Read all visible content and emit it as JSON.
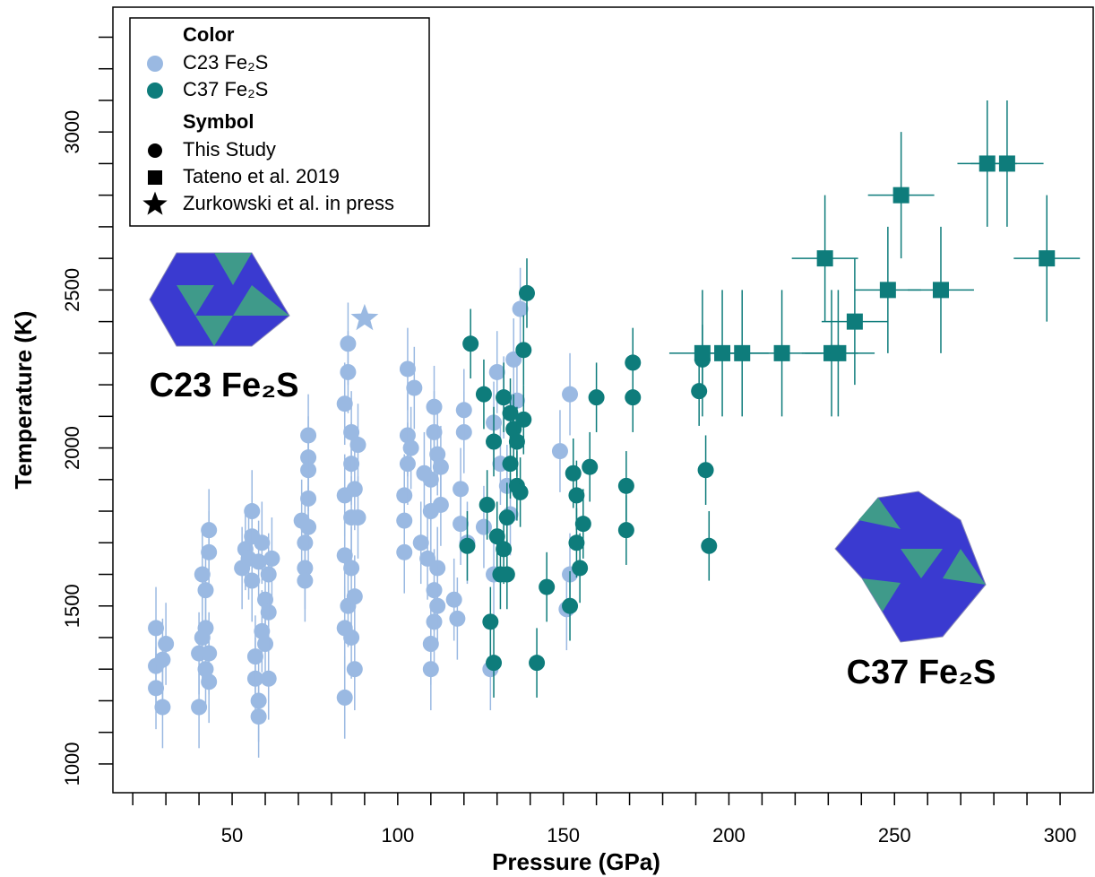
{
  "chart_data": {
    "type": "scatter",
    "xlabel": "Pressure (GPa)",
    "ylabel": "Temperature (K)",
    "xlim": [
      14,
      310
    ],
    "ylim": [
      909,
      3395
    ],
    "xticks": [
      50,
      100,
      150,
      200,
      250,
      300
    ],
    "yticks": [
      1000,
      1500,
      2000,
      2500,
      3000
    ],
    "x_minor_ticks": [
      20,
      30,
      40,
      60,
      70,
      80,
      90,
      110,
      120,
      130,
      140,
      160,
      170,
      180,
      190,
      210,
      220,
      230,
      240,
      260,
      270,
      280,
      290
    ],
    "y_minor_ticks": [
      1100,
      1200,
      1300,
      1400,
      1600,
      1700,
      1800,
      1900,
      2100,
      2200,
      2300,
      2400,
      2600,
      2700,
      2800,
      2900,
      3100,
      3200,
      3300
    ],
    "series": [
      {
        "color": "#9ab9e2",
        "marker": "circle",
        "yerr": 130,
        "x": [
          27,
          27,
          27,
          29,
          29,
          30,
          40,
          40,
          41,
          41,
          42,
          42,
          42,
          43,
          43,
          43,
          43,
          53,
          54,
          55,
          56,
          56,
          56,
          57,
          57,
          58,
          58,
          58,
          59,
          59,
          60,
          60,
          61,
          61,
          61,
          62,
          71,
          72,
          72,
          72,
          73,
          73,
          73,
          73,
          73,
          84,
          84,
          84,
          84,
          84,
          85,
          85,
          85,
          86,
          86,
          86,
          86,
          86,
          87,
          87,
          87,
          88,
          88,
          102,
          102,
          102,
          103,
          103,
          103,
          104,
          105,
          107,
          108,
          109,
          110,
          110,
          110,
          110,
          111,
          111,
          111,
          111,
          112,
          112,
          112,
          113,
          113,
          117,
          118,
          119,
          119,
          120,
          120,
          121,
          126,
          128,
          129,
          129,
          130,
          131,
          132,
          133,
          134,
          135,
          136,
          137,
          149,
          151,
          152,
          152
        ],
        "values": [
          1430,
          1310,
          1240,
          1180,
          1330,
          1380,
          1180,
          1350,
          1400,
          1600,
          1550,
          1430,
          1300,
          1670,
          1740,
          1350,
          1260,
          1620,
          1680,
          1650,
          1720,
          1580,
          1800,
          1270,
          1340,
          1200,
          1150,
          1640,
          1700,
          1420,
          1520,
          1380,
          1480,
          1270,
          1600,
          1650,
          1770,
          1620,
          1700,
          1580,
          1840,
          1930,
          1970,
          2040,
          1750,
          1210,
          1430,
          1660,
          1850,
          2140,
          2240,
          2330,
          1500,
          1950,
          2050,
          1780,
          1620,
          1400,
          1300,
          1870,
          1530,
          2010,
          1780,
          1670,
          1770,
          1850,
          2040,
          1950,
          2250,
          2000,
          2190,
          1700,
          1920,
          1650,
          1900,
          1800,
          1380,
          1300,
          1450,
          2130,
          2050,
          1550,
          1980,
          1620,
          1500,
          1940,
          1820,
          1520,
          1460,
          1870,
          1760,
          2050,
          2120,
          1700,
          1750,
          1300,
          1600,
          2080,
          2240,
          1950,
          2160,
          1880,
          1790,
          2280,
          2150,
          2440,
          1990,
          1490,
          1600,
          2170
        ]
      },
      {
        "color": "#0e7c7b",
        "marker": "circle",
        "yerr": 110,
        "x": [
          121,
          122,
          126,
          127,
          128,
          129,
          129,
          130,
          131,
          132,
          132,
          133,
          133,
          134,
          134,
          135,
          136,
          136,
          137,
          138,
          138,
          139,
          142,
          145,
          152,
          153,
          154,
          154,
          155,
          156,
          158,
          160,
          169,
          169,
          171,
          171,
          191,
          192,
          193,
          194
        ],
        "values": [
          1690,
          2330,
          2170,
          1820,
          1450,
          1320,
          2020,
          1720,
          1600,
          2160,
          1680,
          1780,
          1600,
          2110,
          1950,
          2060,
          2020,
          1880,
          1860,
          2090,
          2310,
          2490,
          1320,
          1560,
          1500,
          1920,
          1700,
          1850,
          1620,
          1760,
          1940,
          2160,
          1740,
          1880,
          2270,
          2160,
          2180,
          2280,
          1930,
          1690
        ]
      },
      {
        "color": "#0e7c7b",
        "marker": "square",
        "x": [
          192,
          198,
          204,
          216,
          229,
          231,
          233,
          238,
          248,
          252,
          264,
          278,
          284,
          296
        ],
        "values": [
          2300,
          2300,
          2300,
          2300,
          2600,
          2300,
          2300,
          2400,
          2500,
          2800,
          2500,
          2900,
          2900,
          2600
        ],
        "xerr": [
          10,
          8,
          8,
          12,
          10,
          8,
          11,
          10,
          10,
          10,
          10,
          9,
          11,
          10
        ],
        "yerr": [
          200,
          200,
          200,
          200,
          200,
          200,
          200,
          200,
          200,
          200,
          200,
          200,
          200,
          200
        ]
      },
      {
        "color": "#9ab9e2",
        "marker": "star",
        "x": [
          90
        ],
        "values": [
          2410
        ]
      }
    ],
    "legend": {
      "color_title": "Color",
      "color_entries": [
        {
          "name": "C23 Fe₂S",
          "color": "#9ab9e2"
        },
        {
          "name": "C37 Fe₂S",
          "color": "#0e7c7b"
        }
      ],
      "symbol_title": "Symbol",
      "symbol_entries": [
        {
          "name": "This Study",
          "marker": "circle"
        },
        {
          "name": "Tateno et al. 2019",
          "marker": "square"
        },
        {
          "name": "Zurkowski et al. in press",
          "marker": "star"
        }
      ]
    },
    "annotations": [
      "C23 Fe₂S",
      "C37 Fe₂S"
    ]
  }
}
